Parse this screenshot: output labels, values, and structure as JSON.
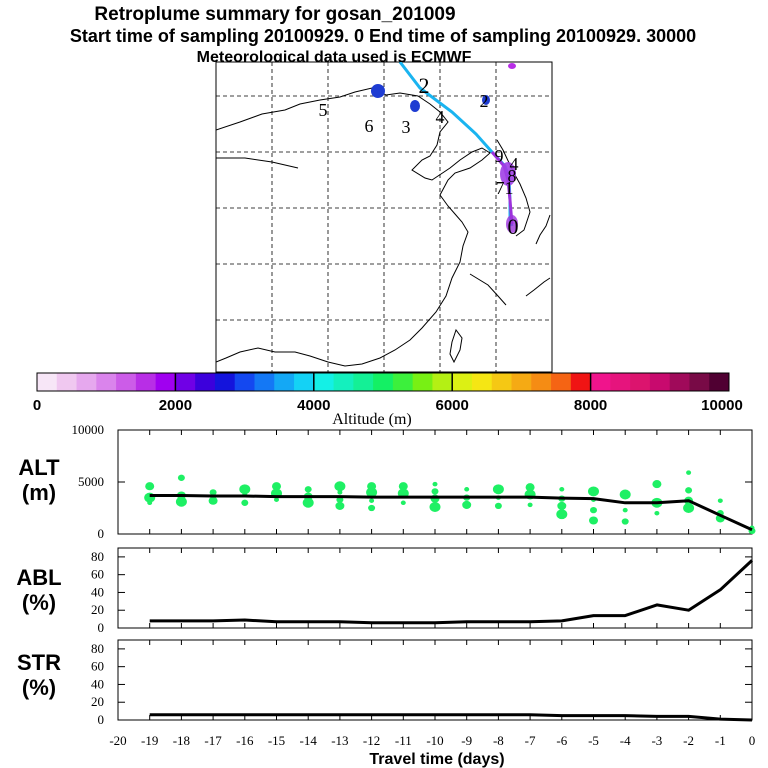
{
  "title": {
    "line1": "Retroplume summary for gosan_201009",
    "line2": "Start time of sampling 20100929.    0     End time of sampling 20100929. 30000",
    "line3": "Meteorological data used is ECMWF"
  },
  "colorbar": {
    "label": "Altitude (m)",
    "ticks": [
      "0",
      "2000",
      "4000",
      "6000",
      "8000",
      "10000"
    ],
    "colors": [
      "#f7e6f7",
      "#f0c8f0",
      "#e6a8ee",
      "#da84ec",
      "#cc5ce8",
      "#b82ee6",
      "#a000f0",
      "#7000e6",
      "#3c00dc",
      "#1414dc",
      "#1448f0",
      "#1478f5",
      "#14a8f5",
      "#14d2f5",
      "#14f0e6",
      "#14f0be",
      "#14f096",
      "#14f064",
      "#3cf03c",
      "#78f014",
      "#b4f014",
      "#dcf014",
      "#f5e614",
      "#f5c814",
      "#f5aa14",
      "#f58c14",
      "#f56414",
      "#f01414",
      "#f0148c",
      "#e6147d",
      "#dc146e",
      "#c80a6e",
      "#a00a5a",
      "#780a46",
      "#500032"
    ]
  },
  "map": {
    "cluster_labels": [
      "0",
      "1",
      "2",
      "3",
      "4",
      "5",
      "6",
      "9",
      "7",
      "8",
      "2",
      "4"
    ],
    "colors": {
      "trajectory": "#1ab4f0",
      "near_source": "#9c32dc",
      "cluster": "#1e3cd2"
    }
  },
  "panels": [
    {
      "label_line1": "ALT",
      "label_line2": "(m)",
      "yticks": [
        "0",
        "5000",
        "10000"
      ]
    },
    {
      "label_line1": "ABL",
      "label_line2": "(%)",
      "yticks": [
        "0",
        "20",
        "40",
        "60",
        "80"
      ]
    },
    {
      "label_line1": "STR",
      "label_line2": "(%)",
      "yticks": [
        "0",
        "20",
        "40",
        "60",
        "80"
      ]
    }
  ],
  "xaxis": {
    "ticks": [
      "-20",
      "-19",
      "-18",
      "-17",
      "-16",
      "-15",
      "-14",
      "-13",
      "-12",
      "-11",
      "-10",
      "-9",
      "-8",
      "-7",
      "-6",
      "-5",
      "-4",
      "-3",
      "-2",
      "-1",
      "0"
    ],
    "label": "Travel time (days)"
  },
  "chart_data": {
    "type": "line",
    "title": "Retroplume summary for gosan_201009",
    "xlabel": "Travel time (days)",
    "xlim": [
      -20,
      0
    ],
    "dot_color": "#1ef064",
    "series": [
      {
        "name": "ALT (m)",
        "ylim": [
          0,
          10000
        ],
        "x": [
          -19,
          -18,
          -17,
          -16,
          -15,
          -14,
          -13,
          -12,
          -11,
          -10,
          -9,
          -8,
          -7,
          -6,
          -5,
          -4,
          -3,
          -2,
          -1,
          0
        ],
        "values": [
          3700,
          3700,
          3650,
          3650,
          3600,
          3600,
          3600,
          3550,
          3550,
          3550,
          3550,
          3550,
          3550,
          3450,
          3400,
          3000,
          3000,
          3200,
          1800,
          400
        ],
        "cluster_points": [
          {
            "x": -19,
            "y": [
              3000,
              3500,
              4600
            ]
          },
          {
            "x": -18,
            "y": [
              3100,
              3700,
              5400
            ]
          },
          {
            "x": -17,
            "y": [
              3200,
              4000
            ]
          },
          {
            "x": -16,
            "y": [
              3000,
              3800,
              4300
            ]
          },
          {
            "x": -15,
            "y": [
              3300,
              3900,
              4600
            ]
          },
          {
            "x": -14,
            "y": [
              3000,
              3600,
              4300
            ]
          },
          {
            "x": -13,
            "y": [
              2700,
              3300,
              4000,
              4600
            ]
          },
          {
            "x": -12,
            "y": [
              2500,
              3200,
              4000,
              4600
            ]
          },
          {
            "x": -11,
            "y": [
              3000,
              3900,
              4600
            ]
          },
          {
            "x": -10,
            "y": [
              2600,
              3400,
              4100,
              4800
            ]
          },
          {
            "x": -9,
            "y": [
              2800,
              3500,
              4300
            ]
          },
          {
            "x": -8,
            "y": [
              2700,
              3500,
              4300
            ]
          },
          {
            "x": -7,
            "y": [
              2800,
              3800,
              4500
            ]
          },
          {
            "x": -6,
            "y": [
              1900,
              2700,
              3400,
              4300
            ]
          },
          {
            "x": -5,
            "y": [
              1300,
              2300,
              3300,
              4100
            ]
          },
          {
            "x": -4,
            "y": [
              1200,
              2300,
              3800
            ]
          },
          {
            "x": -3,
            "y": [
              2000,
              3000,
              4800
            ]
          },
          {
            "x": -2,
            "y": [
              2500,
              3200,
              4200,
              5900
            ]
          },
          {
            "x": -1,
            "y": [
              1500,
              2000,
              3200
            ]
          },
          {
            "x": 0,
            "y": [
              300,
              600
            ]
          }
        ]
      },
      {
        "name": "ABL (%)",
        "ylim": [
          0,
          90
        ],
        "x": [
          -19,
          -18,
          -17,
          -16,
          -15,
          -14,
          -13,
          -12,
          -11,
          -10,
          -9,
          -8,
          -7,
          -6,
          -5,
          -4,
          -3,
          -2,
          -1,
          0
        ],
        "values": [
          8,
          8,
          8,
          9,
          7,
          7,
          7,
          6,
          6,
          6,
          7,
          7,
          7,
          8,
          14,
          14,
          26,
          20,
          43,
          76
        ]
      },
      {
        "name": "STR (%)",
        "ylim": [
          0,
          90
        ],
        "x": [
          -19,
          -18,
          -17,
          -16,
          -15,
          -14,
          -13,
          -12,
          -11,
          -10,
          -9,
          -8,
          -7,
          -6,
          -5,
          -4,
          -3,
          -2,
          -1,
          0
        ],
        "values": [
          6,
          6,
          6,
          6,
          6,
          6,
          6,
          6,
          6,
          6,
          6,
          6,
          6,
          5,
          5,
          5,
          4,
          4,
          1,
          0
        ]
      }
    ]
  }
}
